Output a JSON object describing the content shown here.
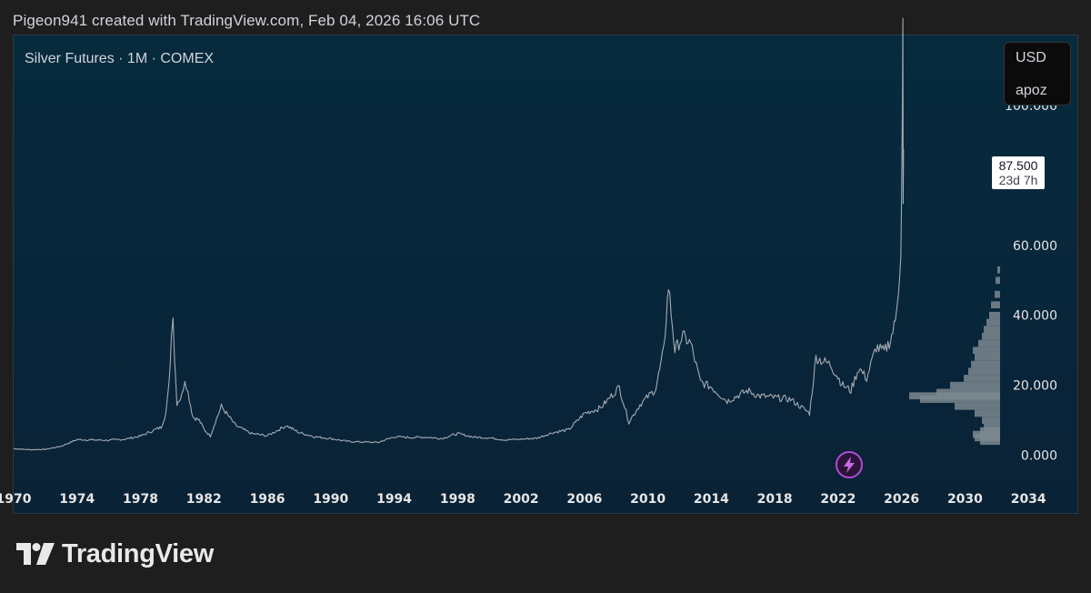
{
  "header": {
    "caption": "Pigeon941 created with TradingView.com, Feb 04, 2026 16:06 UTC"
  },
  "chart": {
    "title": "Silver Futures · 1M · COMEX",
    "currency": "USD",
    "unit": "apoz",
    "last_price_label": "87.500",
    "countdown_label": "23d 7h"
  },
  "footer": {
    "brand": "TradingView"
  },
  "colors": {
    "background": "#1e1e1e",
    "plot_bg": "#072a3d",
    "price_line": "#a3aab3",
    "volume_profile": "#7d8891",
    "axis_text": "#e6e6e6",
    "lightning_badge": "#b04bd8"
  },
  "icons": {
    "event_marker": "lightning-bolt-icon",
    "brand_logo": "tradingview-logo-icon"
  },
  "chart_data": {
    "type": "line",
    "yticks": [
      "100.000",
      "60.000",
      "40.000",
      "20.000",
      "0.000"
    ],
    "xticks": [
      "1970",
      "1974",
      "1978",
      "1982",
      "1986",
      "1990",
      "1994",
      "1998",
      "2002",
      "2006",
      "2010",
      "2014",
      "2018",
      "2022",
      "2026",
      "2030",
      "2034"
    ],
    "ylim": [
      -17,
      120
    ],
    "xlim": [
      1970,
      2037.2
    ],
    "grid": false,
    "series": [
      {
        "points": [
          [
            1970.0,
            1.9
          ],
          [
            1971.0,
            1.6
          ],
          [
            1972.0,
            1.7
          ],
          [
            1973.0,
            2.6
          ],
          [
            1974.0,
            4.5
          ],
          [
            1975.0,
            4.4
          ],
          [
            1976.0,
            4.3
          ],
          [
            1977.0,
            4.6
          ],
          [
            1978.0,
            5.5
          ],
          [
            1979.0,
            7.5
          ],
          [
            1979.3,
            8.0
          ],
          [
            1979.6,
            12.0
          ],
          [
            1979.8,
            20.0
          ],
          [
            1979.95,
            34.0
          ],
          [
            1980.05,
            41.5
          ],
          [
            1980.15,
            28.0
          ],
          [
            1980.3,
            15.0
          ],
          [
            1980.6,
            17.0
          ],
          [
            1980.8,
            22.0
          ],
          [
            1981.0,
            18.0
          ],
          [
            1981.3,
            11.0
          ],
          [
            1981.7,
            10.0
          ],
          [
            1982.0,
            7.5
          ],
          [
            1982.4,
            5.5
          ],
          [
            1982.8,
            10.5
          ],
          [
            1983.1,
            14.0
          ],
          [
            1983.5,
            11.5
          ],
          [
            1984.0,
            8.5
          ],
          [
            1985.0,
            6.2
          ],
          [
            1986.0,
            5.6
          ],
          [
            1987.2,
            8.5
          ],
          [
            1988.0,
            6.5
          ],
          [
            1989.0,
            5.3
          ],
          [
            1990.0,
            4.8
          ],
          [
            1991.0,
            4.0
          ],
          [
            1992.0,
            3.8
          ],
          [
            1993.0,
            3.7
          ],
          [
            1994.0,
            5.3
          ],
          [
            1995.0,
            5.1
          ],
          [
            1996.0,
            5.2
          ],
          [
            1997.0,
            4.8
          ],
          [
            1998.0,
            6.2
          ],
          [
            1999.0,
            5.2
          ],
          [
            2000.0,
            5.0
          ],
          [
            2001.0,
            4.4
          ],
          [
            2002.0,
            4.6
          ],
          [
            2003.0,
            4.9
          ],
          [
            2004.0,
            6.5
          ],
          [
            2005.0,
            7.3
          ],
          [
            2006.0,
            12.0
          ],
          [
            2007.0,
            13.5
          ],
          [
            2008.2,
            19.5
          ],
          [
            2008.8,
            9.5
          ],
          [
            2009.5,
            14.5
          ],
          [
            2010.5,
            19.0
          ],
          [
            2011.0,
            30.0
          ],
          [
            2011.3,
            48.5
          ],
          [
            2011.7,
            30.0
          ],
          [
            2012.2,
            34.0
          ],
          [
            2012.7,
            32.0
          ],
          [
            2013.3,
            21.0
          ],
          [
            2014.0,
            19.5
          ],
          [
            2015.0,
            15.5
          ],
          [
            2016.3,
            18.5
          ],
          [
            2017.0,
            17.0
          ],
          [
            2018.0,
            16.5
          ],
          [
            2019.0,
            16.0
          ],
          [
            2020.2,
            12.0
          ],
          [
            2020.6,
            28.0
          ],
          [
            2021.0,
            27.0
          ],
          [
            2021.5,
            26.0
          ],
          [
            2022.3,
            20.0
          ],
          [
            2022.8,
            18.5
          ],
          [
            2023.3,
            25.0
          ],
          [
            2023.8,
            22.0
          ],
          [
            2024.4,
            31.0
          ],
          [
            2024.9,
            29.5
          ],
          [
            2025.3,
            33.0
          ],
          [
            2025.6,
            38.0
          ],
          [
            2025.8,
            48.0
          ],
          [
            2025.95,
            58.0
          ],
          [
            2026.0,
            73.0
          ],
          [
            2026.05,
            95.0
          ],
          [
            2026.08,
            121.0
          ],
          [
            2026.1,
            70.0
          ],
          [
            2026.12,
            87.5
          ]
        ]
      }
    ],
    "volume_profile": {
      "price_levels": [
        4,
        5,
        6,
        7,
        8,
        10,
        12,
        14,
        16,
        17,
        18,
        20,
        22,
        24,
        26,
        28,
        30,
        32,
        34,
        36,
        38,
        40,
        43,
        46,
        50,
        53
      ],
      "relative_volume": [
        0.22,
        0.28,
        0.3,
        0.22,
        0.18,
        0.2,
        0.28,
        0.5,
        0.88,
        1.0,
        0.7,
        0.55,
        0.4,
        0.35,
        0.32,
        0.28,
        0.3,
        0.24,
        0.2,
        0.18,
        0.15,
        0.12,
        0.1,
        0.06,
        0.05,
        0.03
      ]
    }
  }
}
